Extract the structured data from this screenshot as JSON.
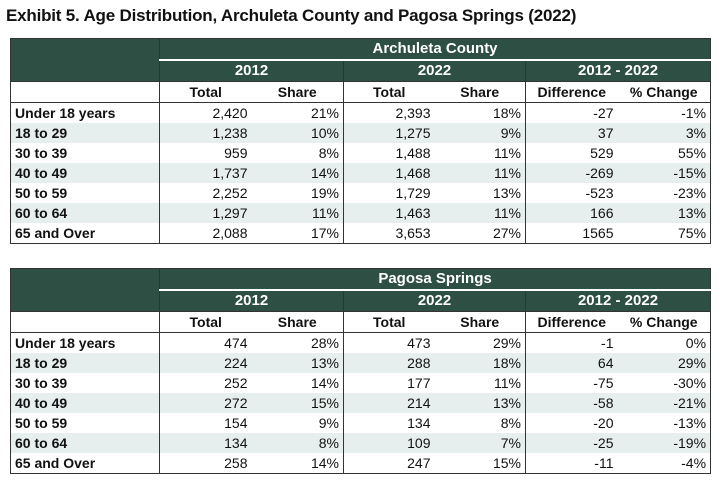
{
  "title": "Exhibit 5. Age Distribution, Archuleta County and Pagosa Springs (2022)",
  "column_groups": [
    "2012",
    "2022",
    "2012 - 2022"
  ],
  "column_headers": [
    "Total",
    "Share",
    "Total",
    "Share",
    "Difference",
    "% Change"
  ],
  "tables": [
    {
      "name": "Archuleta County",
      "rows": [
        [
          "Under 18 years",
          "2,420",
          "21%",
          "2,393",
          "18%",
          "-27",
          "-1%"
        ],
        [
          "18 to 29",
          "1,238",
          "10%",
          "1,275",
          "9%",
          "37",
          "3%"
        ],
        [
          "30 to 39",
          "959",
          "8%",
          "1,488",
          "11%",
          "529",
          "55%"
        ],
        [
          "40 to 49",
          "1,737",
          "14%",
          "1,468",
          "11%",
          "-269",
          "-15%"
        ],
        [
          "50 to 59",
          "2,252",
          "19%",
          "1,729",
          "13%",
          "-523",
          "-23%"
        ],
        [
          "60 to 64",
          "1,297",
          "11%",
          "1,463",
          "11%",
          "166",
          "13%"
        ],
        [
          "65 and Over",
          "2,088",
          "17%",
          "3,653",
          "27%",
          "1565",
          "75%"
        ]
      ]
    },
    {
      "name": "Pagosa Springs",
      "rows": [
        [
          "Under 18 years",
          "474",
          "28%",
          "473",
          "29%",
          "-1",
          "0%"
        ],
        [
          "18 to 29",
          "224",
          "13%",
          "288",
          "18%",
          "64",
          "29%"
        ],
        [
          "30 to 39",
          "252",
          "14%",
          "177",
          "11%",
          "-75",
          "-30%"
        ],
        [
          "40 to 49",
          "272",
          "15%",
          "214",
          "13%",
          "-58",
          "-21%"
        ],
        [
          "50 to 59",
          "154",
          "9%",
          "134",
          "8%",
          "-20",
          "-13%"
        ],
        [
          "60 to 64",
          "134",
          "8%",
          "109",
          "7%",
          "-25",
          "-19%"
        ],
        [
          "65 and Over",
          "258",
          "14%",
          "247",
          "15%",
          "-11",
          "-4%"
        ]
      ]
    }
  ]
}
